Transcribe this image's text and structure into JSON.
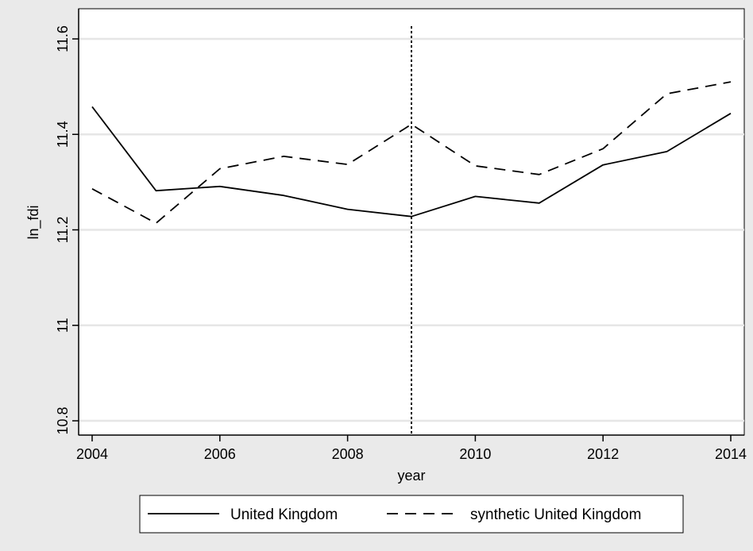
{
  "chart_data": {
    "type": "line",
    "title": "",
    "xlabel": "year",
    "ylabel": "ln_fdi",
    "xlim": [
      2004,
      2014
    ],
    "ylim": [
      10.8,
      11.6
    ],
    "x_ticks": [
      2004,
      2006,
      2008,
      2010,
      2012,
      2014
    ],
    "y_ticks": [
      10.8,
      11,
      11.2,
      11.4,
      11.6
    ],
    "x_tick_labels": [
      "2004",
      "2006",
      "2008",
      "2010",
      "2012",
      "2014"
    ],
    "y_tick_labels": [
      "10.8",
      "11",
      "11.2",
      "11.4",
      "11.6"
    ],
    "grid": "horizontal",
    "legend_position": "bottom",
    "reference_line": {
      "axis": "x",
      "value": 2009,
      "style": "dotted"
    },
    "x": [
      2004,
      2005,
      2006,
      2007,
      2008,
      2009,
      2010,
      2011,
      2012,
      2013,
      2014
    ],
    "series": [
      {
        "name": "United Kingdom",
        "style": "solid",
        "color": "#000000",
        "values": [
          11.458,
          11.282,
          11.291,
          11.272,
          11.243,
          11.228,
          11.27,
          11.256,
          11.336,
          11.364,
          11.444
        ]
      },
      {
        "name": "synthetic United Kingdom",
        "style": "dashed",
        "color": "#000000",
        "values": [
          11.286,
          11.214,
          11.328,
          11.354,
          11.337,
          11.421,
          11.334,
          11.316,
          11.37,
          11.485,
          11.51
        ]
      }
    ]
  }
}
